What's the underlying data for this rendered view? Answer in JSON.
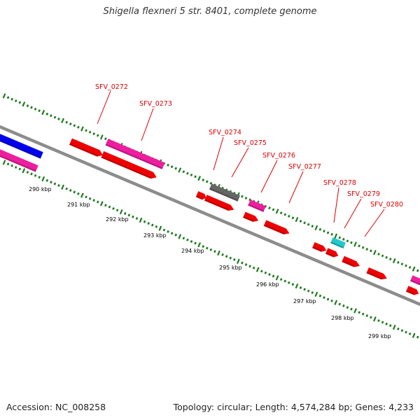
{
  "header": {
    "title": "Shigella flexneri 5 str. 8401, complete genome"
  },
  "footer": {
    "accession": "Accession: NC_008258",
    "summary": "Topology: circular; Length: 4,574,284 bp; Genes: 4,233"
  },
  "colors": {
    "backbone": "#8c8c8c",
    "tick": "#1f7a1f",
    "gene_red": "#ee0000",
    "gene_magenta": "#ee1ea0",
    "gene_blue": "#0000ee",
    "gene_gray": "#666666",
    "gene_cyan": "#22c8cc",
    "label_text": "#dd0000"
  },
  "scale_labels": [
    "290 kbp",
    "291 kbp",
    "292 kbp",
    "293 kbp",
    "294 kbp",
    "295 kbp",
    "296 kbp",
    "297 kbp",
    "298 kbp",
    "299 kbp"
  ],
  "gene_labels": [
    "SFV_0272",
    "SFV_0273",
    "SFV_0274",
    "SFV_0275",
    "SFV_0276",
    "SFV_0277",
    "SFV_0278",
    "SFV_0279",
    "SFV_0280"
  ]
}
